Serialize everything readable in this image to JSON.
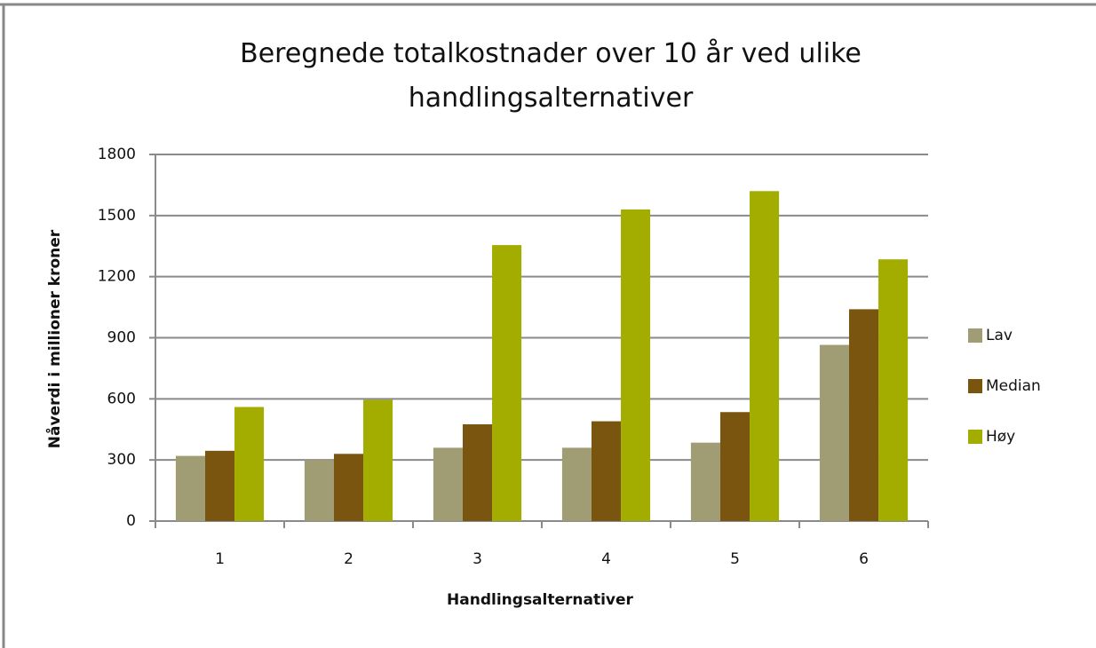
{
  "chart_data": {
    "type": "bar",
    "title": "Beregnede totalkostnader over 10 år ved ulike handlingsalternativer",
    "xlabel": "Handlingsalternativer",
    "ylabel": "Nåverdi i millioner kroner",
    "categories": [
      "1",
      "2",
      "3",
      "4",
      "5",
      "6"
    ],
    "series": [
      {
        "name": "Lav",
        "color": "#a09d74",
        "values": [
          320,
          300,
          360,
          360,
          385,
          865
        ]
      },
      {
        "name": "Median",
        "color": "#7a5510",
        "values": [
          345,
          330,
          475,
          490,
          535,
          1040
        ]
      },
      {
        "name": "Høy",
        "color": "#a2ad00",
        "values": [
          560,
          595,
          1355,
          1530,
          1620,
          1285
        ]
      }
    ],
    "ylim": [
      0,
      1800
    ],
    "yticks": [
      0,
      300,
      600,
      900,
      1200,
      1500,
      1800
    ],
    "grid": true,
    "legend": "right"
  }
}
